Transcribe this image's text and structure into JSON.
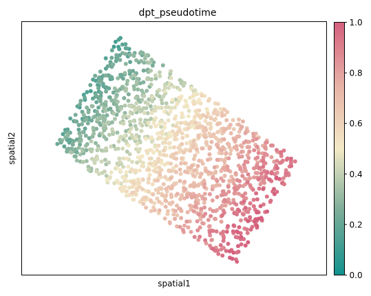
{
  "chart_data": {
    "type": "scatter",
    "title": "dpt_pseudotime",
    "xlabel": "spatial1",
    "ylabel": "spatial2",
    "x_ticks": [],
    "y_ticks": [],
    "grid": false,
    "legend": "colorbar-right",
    "colorbar": {
      "vmin": 0.0,
      "vmax": 1.0,
      "ticks": [
        "0.0",
        "0.2",
        "0.4",
        "0.6",
        "0.8",
        "1.0"
      ],
      "colors": [
        "#12928e",
        "#7aac98",
        "#f3e9c6",
        "#e7b2a6",
        "#d5607e"
      ]
    },
    "note_on_coordinates": "points given in normalized spatial units (x: 0=left,1=right; y: 0=bottom,1=top)",
    "regions": [
      {
        "x": [
          0.12,
          0.3
        ],
        "y": [
          0.55,
          0.95
        ],
        "value_range": [
          0.0,
          0.35
        ]
      },
      {
        "x": [
          0.15,
          0.45
        ],
        "y": [
          0.4,
          0.85
        ],
        "value_range": [
          0.4,
          0.55
        ]
      },
      {
        "x": [
          0.3,
          0.7
        ],
        "y": [
          0.25,
          0.75
        ],
        "value_range": [
          0.55,
          0.75
        ]
      },
      {
        "x": [
          0.6,
          0.9
        ],
        "y": [
          0.05,
          0.6
        ],
        "value_range": [
          0.8,
          1.0
        ]
      }
    ]
  }
}
